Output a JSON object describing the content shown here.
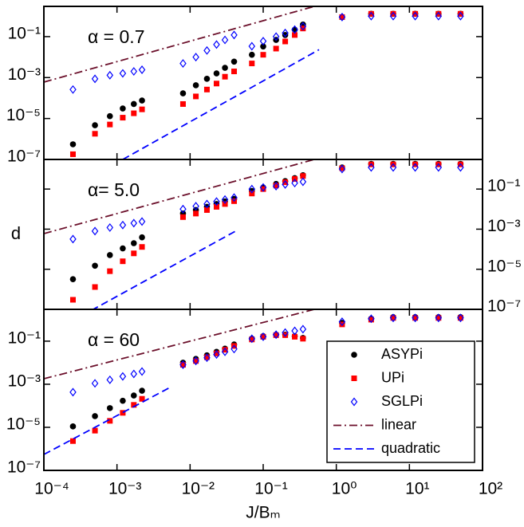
{
  "chart_data": [
    {
      "type": "scatter",
      "annotation": "α = 0.7",
      "xscale": "log",
      "yscale": "log",
      "xlim": [
        0.0001,
        100
      ],
      "ylim": [
        1e-07,
        3
      ],
      "xticks": [
        0.0001,
        0.001,
        0.01,
        0.1,
        1,
        10,
        100
      ],
      "yticks": [
        {
          "value": 1e-07,
          "label": "10⁻⁷"
        },
        {
          "value": 1e-05,
          "label": "10⁻⁵"
        },
        {
          "value": 0.001,
          "label": "10⁻³"
        },
        {
          "value": 0.1,
          "label": "10⁻¹"
        }
      ],
      "ytick_side": "left",
      "x": [
        0.00025,
        0.0005,
        0.0008,
        0.0012,
        0.0017,
        0.0022,
        0.008,
        0.012,
        0.017,
        0.023,
        0.03,
        0.04,
        0.07,
        0.1,
        0.15,
        0.2,
        0.27,
        0.35,
        1.2,
        3,
        6,
        12,
        25,
        50
      ],
      "series": [
        {
          "marker": "circle",
          "color": "#000000",
          "values": [
            5.5e-07,
            4.7e-06,
            1.3e-05,
            3.1e-05,
            5.1e-05,
            7.6e-05,
            0.00017,
            0.00042,
            0.00087,
            0.0016,
            0.003,
            0.006,
            0.013,
            0.033,
            0.069,
            0.12,
            0.22,
            0.39,
            0.9,
            1.3,
            1.3,
            1.3,
            1.3,
            1.3
          ]
        },
        {
          "marker": "square",
          "color": "#ff0000",
          "values": [
            1.8e-07,
            1.8e-06,
            5.1e-06,
            1.1e-05,
            1.8e-05,
            2.8e-05,
            5.1e-05,
            0.00012,
            0.00026,
            0.00051,
            0.0011,
            0.002,
            0.0049,
            0.013,
            0.026,
            0.058,
            0.12,
            0.25,
            0.9,
            1.3,
            1.3,
            1.3,
            1.3,
            1.3
          ]
        },
        {
          "marker": "diamond",
          "color": "#0000ff",
          "values": [
            0.00026,
            0.00087,
            0.0013,
            0.0016,
            0.002,
            0.0024,
            0.0049,
            0.01,
            0.021,
            0.041,
            0.069,
            0.12,
            0.034,
            0.06,
            0.1,
            0.15,
            0.22,
            0.32,
            0.9,
            1,
            1,
            1,
            1,
            1
          ]
        },
        {
          "line": "dashdot",
          "color": "#6b0f2a",
          "x": [
            0.0001,
            0.5
          ],
          "values": [
            0.0006,
            3
          ]
        },
        {
          "line": "dashed",
          "color": "#0000ff",
          "x": [
            0.0012,
            0.58
          ],
          "values": [
            1e-07,
            0.023
          ]
        }
      ]
    },
    {
      "type": "scatter",
      "annotation": "α= 5.0",
      "y_label": "d",
      "xscale": "log",
      "yscale": "log",
      "xlim": [
        0.0001,
        100
      ],
      "ylim": [
        1e-07,
        3
      ],
      "xticks": [
        0.0001,
        0.001,
        0.01,
        0.1,
        1,
        10,
        100
      ],
      "yticks": [
        {
          "value": 1e-07,
          "label": "10⁻⁷"
        },
        {
          "value": 1e-05,
          "label": "10⁻⁵"
        },
        {
          "value": 0.001,
          "label": "10⁻³"
        },
        {
          "value": 0.1,
          "label": "10⁻¹"
        }
      ],
      "ytick_side": "right",
      "x": [
        0.00025,
        0.0005,
        0.0008,
        0.0012,
        0.0017,
        0.0022,
        0.008,
        0.012,
        0.017,
        0.023,
        0.03,
        0.04,
        0.07,
        0.1,
        0.15,
        0.2,
        0.27,
        0.35,
        1.2,
        3,
        6,
        12,
        25,
        50
      ],
      "series": [
        {
          "marker": "circle",
          "color": "#000000",
          "values": [
            3.2e-06,
            1.5e-05,
            5.1e-05,
            0.00011,
            0.0002,
            0.00039,
            0.006,
            0.009,
            0.013,
            0.018,
            0.024,
            0.032,
            0.08,
            0.12,
            0.18,
            0.25,
            0.35,
            0.49,
            1.2,
            1.8,
            1.8,
            1.8,
            1.8,
            1.8
          ]
        },
        {
          "marker": "square",
          "color": "#ff0000",
          "values": [
            3e-07,
            1.3e-06,
            8e-06,
            2.5e-05,
            6.2e-05,
            0.00013,
            0.004,
            0.006,
            0.009,
            0.013,
            0.018,
            0.025,
            0.06,
            0.1,
            0.15,
            0.22,
            0.32,
            0.45,
            1.1,
            1.7,
            1.7,
            1.7,
            1.7,
            1.7
          ]
        },
        {
          "marker": "diamond",
          "color": "#0000ff",
          "values": [
            0.00032,
            0.0008,
            0.0012,
            0.0016,
            0.002,
            0.0024,
            0.01,
            0.014,
            0.018,
            0.024,
            0.03,
            0.038,
            0.1,
            0.12,
            0.14,
            0.17,
            0.2,
            0.23,
            1,
            1.2,
            1.2,
            1.2,
            1.2,
            1.2
          ]
        },
        {
          "line": "dashdot",
          "color": "#6b0f2a",
          "x": [
            0.0001,
            0.5
          ],
          "values": [
            0.0006,
            3
          ]
        },
        {
          "line": "dashed",
          "color": "#0000ff",
          "x": [
            0.00045,
            0.042
          ],
          "values": [
            9e-08,
            0.0008
          ]
        }
      ]
    },
    {
      "type": "scatter",
      "annotation": "α = 60",
      "x_label": "J/Bₘ",
      "xscale": "log",
      "yscale": "log",
      "xlim": [
        0.0001,
        100
      ],
      "ylim": [
        1e-07,
        3
      ],
      "xticks": [
        {
          "value": 0.0001,
          "label": "10⁻⁴"
        },
        {
          "value": 0.001,
          "label": "10⁻³"
        },
        {
          "value": 0.01,
          "label": "10⁻²"
        },
        {
          "value": 0.1,
          "label": "10⁻¹"
        },
        {
          "value": 1,
          "label": "10⁰"
        },
        {
          "value": 10,
          "label": "10¹"
        },
        {
          "value": 100,
          "label": "10²"
        }
      ],
      "yticks": [
        {
          "value": 1e-07,
          "label": "10⁻⁷"
        },
        {
          "value": 1e-05,
          "label": "10⁻⁵"
        },
        {
          "value": 0.001,
          "label": "10⁻³"
        },
        {
          "value": 0.1,
          "label": "10⁻¹"
        }
      ],
      "ytick_side": "left",
      "legend": "lower right",
      "x": [
        0.00025,
        0.0005,
        0.0008,
        0.0012,
        0.0017,
        0.0022,
        0.008,
        0.012,
        0.017,
        0.023,
        0.03,
        0.04,
        0.07,
        0.1,
        0.15,
        0.2,
        0.27,
        0.35,
        1.2,
        3,
        6,
        12,
        25,
        50
      ],
      "series": [
        {
          "name": "ASYPi",
          "marker": "circle",
          "color": "#000000",
          "values": [
            1.1e-05,
            3.3e-05,
            7.8e-05,
            0.00017,
            0.0003,
            0.0005,
            0.01,
            0.015,
            0.022,
            0.032,
            0.045,
            0.07,
            0.13,
            0.17,
            0.2,
            0.2,
            0.17,
            0.14,
            0.7,
            1.1,
            1.3,
            1.3,
            1.3,
            1.3
          ]
        },
        {
          "name": "UPi",
          "marker": "square",
          "color": "#ff0000",
          "values": [
            2.3e-06,
            7e-06,
            2e-05,
            4.7e-05,
            0.00011,
            0.00021,
            0.008,
            0.012,
            0.018,
            0.027,
            0.04,
            0.06,
            0.12,
            0.16,
            0.19,
            0.19,
            0.16,
            0.13,
            0.6,
            1,
            1.2,
            1.2,
            1.2,
            1.2
          ]
        },
        {
          "name": "SGLPi",
          "marker": "diamond",
          "color": "#0000ff",
          "values": [
            0.00043,
            0.0011,
            0.0016,
            0.0023,
            0.003,
            0.0039,
            0.008,
            0.012,
            0.017,
            0.024,
            0.032,
            0.043,
            0.13,
            0.16,
            0.2,
            0.25,
            0.3,
            0.36,
            0.8,
            1.1,
            1.2,
            1.2,
            1.2,
            1.2
          ]
        },
        {
          "name": "linear",
          "line": "dashdot",
          "color": "#6b0f2a",
          "x": [
            0.0001,
            0.5
          ],
          "values": [
            0.0018,
            3
          ]
        },
        {
          "name": "quadratic",
          "line": "dashed",
          "color": "#0000ff",
          "x": [
            0.0001,
            0.0056
          ],
          "values": [
            5.5e-07,
            0.00078
          ]
        }
      ]
    }
  ]
}
